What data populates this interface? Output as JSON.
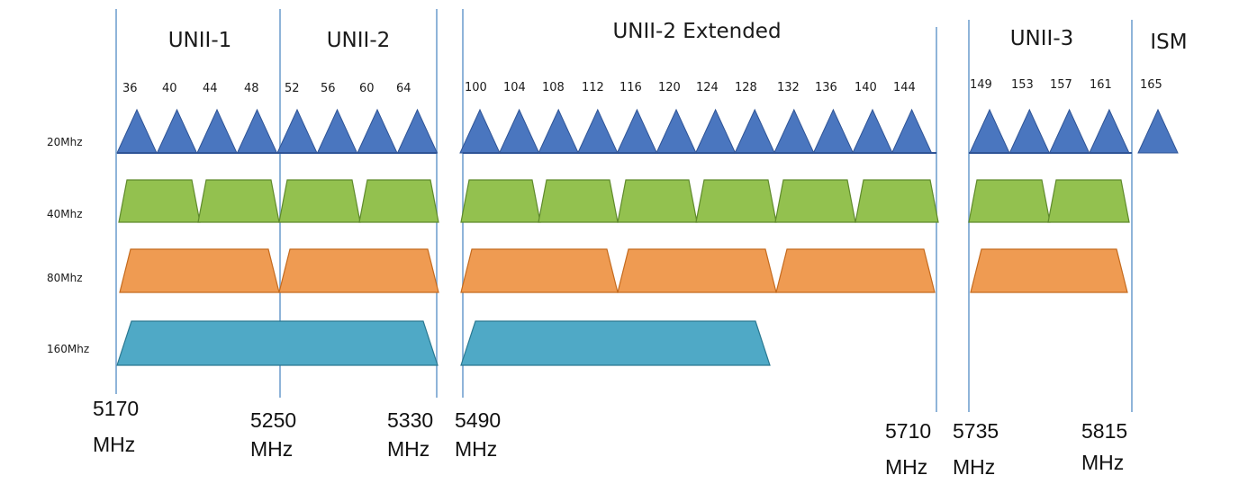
{
  "colors": {
    "divider": "#8fb4d9",
    "w20_fill": "#4a76bf",
    "w20_stroke": "#2f5496",
    "w40_fill": "#93c14f",
    "w40_stroke": "#5f8a2c",
    "w80_fill": "#ef9b52",
    "w80_stroke": "#c46a1e",
    "w160_fill": "#4fa9c6",
    "w160_stroke": "#2a7891"
  },
  "bands": [
    {
      "label": "UNII-1"
    },
    {
      "label": "UNII-2"
    },
    {
      "label": "UNII-2 Extended"
    },
    {
      "label": "UNII-3"
    },
    {
      "label": "ISM"
    }
  ],
  "row_labels": [
    "20Mhz",
    "40Mhz",
    "80Mhz",
    "160Mhz"
  ],
  "channels_20": [
    "36",
    "40",
    "44",
    "48",
    "52",
    "56",
    "60",
    "64",
    "100",
    "104",
    "108",
    "112",
    "116",
    "120",
    "124",
    "128",
    "132",
    "136",
    "140",
    "144",
    "149",
    "153",
    "157",
    "161",
    "165"
  ],
  "frequencies": [
    {
      "value": "5170",
      "unit": "MHz"
    },
    {
      "value": "5250",
      "unit": "MHz"
    },
    {
      "value": "5330",
      "unit": "MHz"
    },
    {
      "value": "5490",
      "unit": "MHz"
    },
    {
      "value": "5710",
      "unit": "MHz"
    },
    {
      "value": "5735",
      "unit": "MHz"
    },
    {
      "value": "5815",
      "unit": "MHz"
    }
  ]
}
